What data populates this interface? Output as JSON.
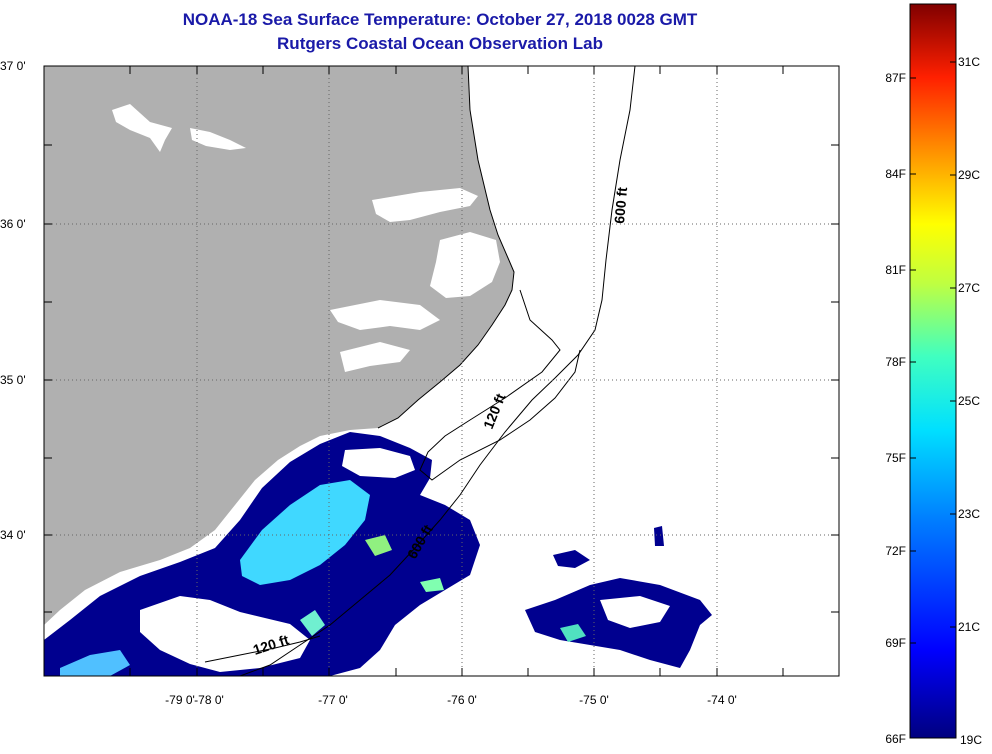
{
  "title": {
    "line1": "NOAA-18 Sea Surface Temperature:  October 27, 2018 0028 GMT",
    "line2": "Rutgers Coastal Ocean Observation Lab"
  },
  "axes": {
    "lat_labels": [
      "37 0'",
      "36 0'",
      "35 0'",
      "34 0'"
    ],
    "lon_labels": [
      "-79 0'",
      "-78 0'",
      "-77 0'",
      "-76 0'",
      "-75 0'",
      "-74 0'"
    ]
  },
  "isobaths": [
    {
      "label": "600 ft"
    },
    {
      "label": "120 ft"
    },
    {
      "label": "600 ft"
    },
    {
      "label": "120 ft"
    }
  ],
  "colorbar": {
    "f_labels": [
      "87F",
      "84F",
      "81F",
      "78F",
      "75F",
      "72F",
      "69F",
      "66F"
    ],
    "c_labels": [
      "31C",
      "29C",
      "27C",
      "25C",
      "23C",
      "21C",
      "19C"
    ]
  },
  "colors": {
    "title": "#1a1aa8",
    "land": "#b0b0b0",
    "cold_water": "#00008f"
  }
}
